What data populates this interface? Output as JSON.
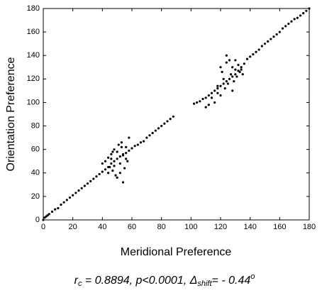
{
  "chart_data": {
    "type": "scatter",
    "x_label": "Meridional Preference",
    "y_label": "Orientation Preference",
    "annotation": {
      "r": "r",
      "r_sub": "c",
      "mid": " = 0.8894, p<0.0001, Δ",
      "shift_sub": "shift",
      "end": "= - 0.44",
      "sup": "o"
    },
    "xlim": [
      0,
      180
    ],
    "ylim": [
      0,
      180
    ],
    "xticks": [
      0,
      20,
      40,
      60,
      80,
      100,
      120,
      140,
      160,
      180
    ],
    "yticks": [
      0,
      20,
      40,
      60,
      80,
      100,
      120,
      140,
      160,
      180
    ],
    "color": "#000000",
    "x": [
      0,
      1,
      2,
      3,
      4,
      6,
      8,
      10,
      12,
      14,
      16,
      18,
      20,
      22,
      24,
      26,
      28,
      30,
      32,
      34,
      36,
      38,
      40,
      42,
      44,
      46,
      48,
      50,
      52,
      54,
      56,
      58,
      60,
      62,
      64,
      66,
      68,
      70,
      72,
      74,
      76,
      78,
      80,
      82,
      84,
      86,
      88,
      40,
      42,
      44,
      45,
      46,
      47,
      48,
      49,
      50,
      51,
      52,
      53,
      54,
      55,
      56,
      57,
      58,
      50,
      48,
      46,
      52,
      54,
      56,
      44,
      47,
      53,
      102,
      104,
      106,
      108,
      110,
      112,
      114,
      116,
      118,
      120,
      122,
      124,
      126,
      128,
      130,
      132,
      134,
      136,
      138,
      140,
      142,
      144,
      146,
      148,
      150,
      152,
      154,
      156,
      158,
      160,
      162,
      164,
      166,
      168,
      170,
      172,
      174,
      176,
      178,
      180,
      110,
      112,
      114,
      116,
      118,
      120,
      121,
      122,
      123,
      124,
      125,
      126,
      127,
      128,
      129,
      130,
      131,
      132,
      133,
      134,
      135,
      118,
      120,
      124,
      128,
      130
    ],
    "y": [
      0,
      2,
      3,
      4,
      5,
      7,
      9,
      10,
      13,
      15,
      17,
      19,
      21,
      23,
      25,
      27,
      29,
      31,
      33,
      35,
      37,
      39,
      41,
      43,
      45,
      48,
      50,
      52,
      54,
      55,
      57,
      59,
      61,
      63,
      64,
      66,
      67,
      70,
      72,
      74,
      76,
      78,
      80,
      82,
      84,
      86,
      88,
      48,
      50,
      53,
      45,
      56,
      42,
      60,
      38,
      58,
      64,
      40,
      66,
      32,
      44,
      62,
      50,
      70,
      36,
      46,
      52,
      48,
      56,
      52,
      40,
      58,
      62,
      99,
      100,
      101,
      103,
      104,
      106,
      108,
      110,
      112,
      114,
      116,
      118,
      120,
      122,
      124,
      127,
      130,
      133,
      137,
      139,
      141,
      143,
      145,
      148,
      150,
      152,
      154,
      156,
      158,
      160,
      163,
      165,
      167,
      169,
      171,
      172,
      174,
      176,
      178,
      180,
      96,
      98,
      104,
      100,
      108,
      106,
      126,
      120,
      112,
      134,
      116,
      136,
      124,
      130,
      118,
      128,
      122,
      132,
      126,
      128,
      124,
      114,
      130,
      140,
      110,
      136
    ]
  }
}
